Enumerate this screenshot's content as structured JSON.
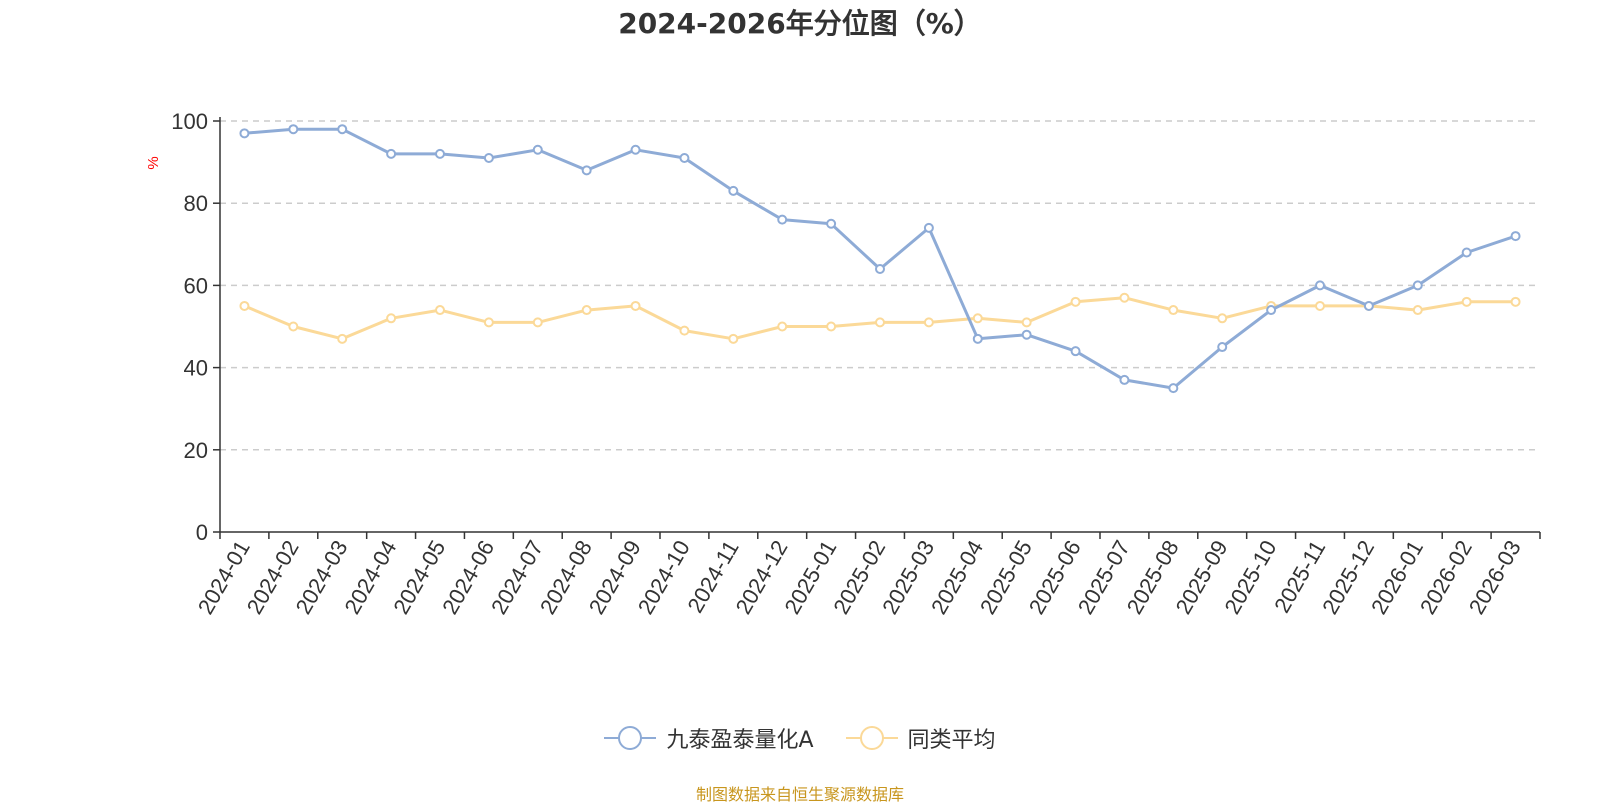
{
  "chart_data": {
    "type": "line",
    "title": "2024-2026年分位图（%）",
    "ylabel": "%",
    "ylim": [
      0,
      100
    ],
    "yticks": [
      0,
      20,
      40,
      60,
      80,
      100
    ],
    "grid": true,
    "legend_position": "bottom",
    "categories": [
      "2024-01",
      "2024-02",
      "2024-03",
      "2024-04",
      "2024-05",
      "2024-06",
      "2024-07",
      "2024-08",
      "2024-09",
      "2024-10",
      "2024-11",
      "2024-12",
      "2025-01",
      "2025-02",
      "2025-03",
      "2025-04",
      "2025-05",
      "2025-06",
      "2025-07",
      "2025-08",
      "2025-09",
      "2025-10",
      "2025-11",
      "2025-12",
      "2026-01",
      "2026-02",
      "2026-03"
    ],
    "series": [
      {
        "name": "九泰盈泰量化A",
        "color": "#8eabd6",
        "values": [
          97,
          98,
          98,
          92,
          92,
          91,
          93,
          88,
          93,
          91,
          83,
          76,
          75,
          64,
          74,
          47,
          48,
          44,
          37,
          35,
          45,
          54,
          60,
          55,
          60,
          68,
          72
        ]
      },
      {
        "name": "同类平均",
        "color": "#fbd998",
        "values": [
          55,
          50,
          47,
          52,
          54,
          51,
          51,
          54,
          55,
          49,
          47,
          50,
          50,
          51,
          51,
          52,
          51,
          56,
          57,
          54,
          52,
          55,
          55,
          55,
          54,
          56,
          56
        ]
      }
    ],
    "source": "制图数据来自恒生聚源数据库"
  }
}
